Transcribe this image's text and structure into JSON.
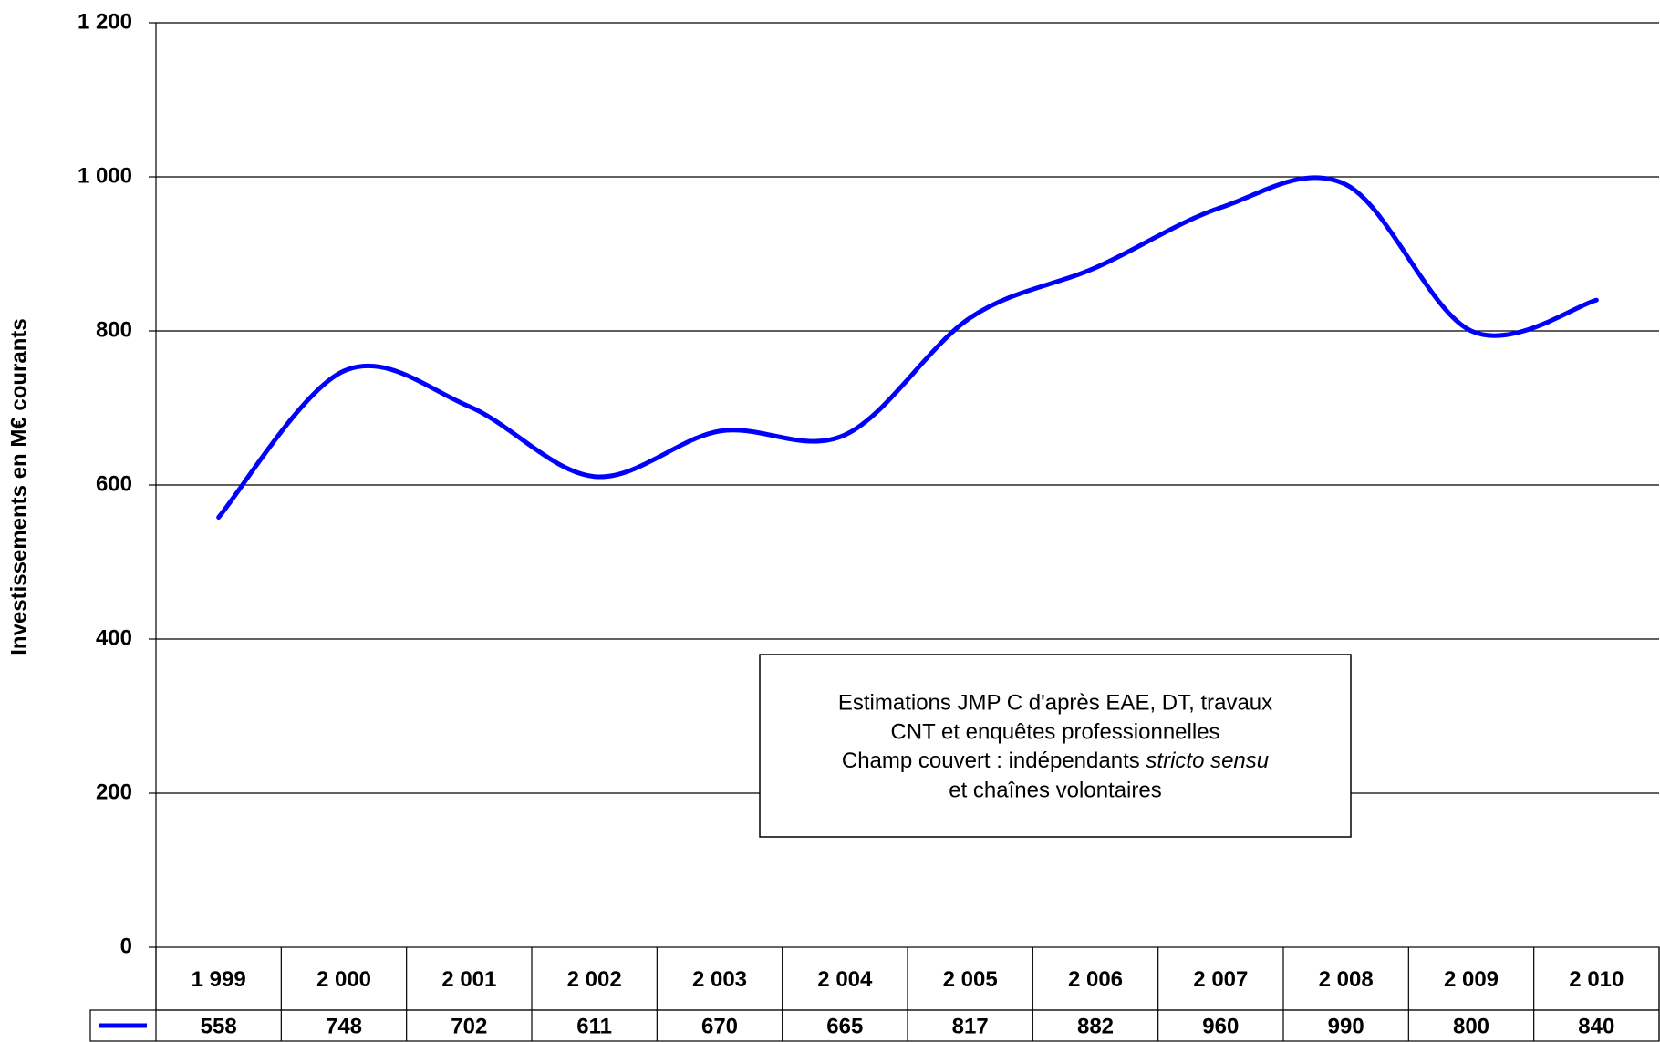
{
  "chart_data": {
    "type": "line",
    "y_axis_label": "Investissements en M€ courants",
    "categories": [
      "1 999",
      "2 000",
      "2 001",
      "2 002",
      "2 003",
      "2 004",
      "2 005",
      "2 006",
      "2 007",
      "2 008",
      "2 009",
      "2 010"
    ],
    "series": [
      {
        "color": "#0000ff",
        "values": [
          558,
          748,
          702,
          611,
          670,
          665,
          817,
          882,
          960,
          990,
          800,
          840
        ]
      }
    ],
    "ylim": [
      0,
      1200
    ],
    "yticks": [
      0,
      200,
      400,
      600,
      800,
      {
        "value": 1000,
        "label": "1 000"
      },
      {
        "value": 1200,
        "label": "1 200"
      }
    ],
    "grid": true,
    "annotation": {
      "lines": [
        "Estimations JMP C d'après EAE, DT, travaux",
        "CNT et enquêtes professionnelles"
      ],
      "line3": "Champ couvert : indépendants ",
      "line3_italic": "stricto sensu",
      "line4": "et chaînes volontaires"
    }
  }
}
